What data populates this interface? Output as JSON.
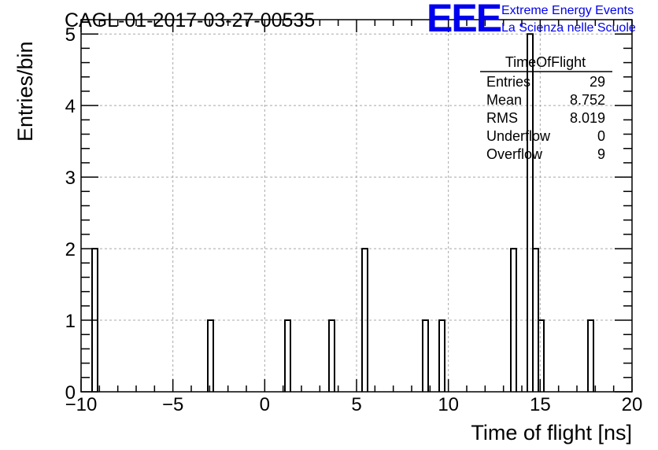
{
  "chart_data": {
    "type": "bar",
    "title": "CAGL-01-2017-03-27-00535",
    "xlabel": "Time of flight [ns]",
    "ylabel": "Entries/bin",
    "xlim": [
      -10,
      20
    ],
    "ylim": [
      0,
      5.2
    ],
    "grid": true,
    "bin_width": 0.3,
    "xticks": [
      -10,
      -5,
      0,
      5,
      10,
      15,
      20
    ],
    "xtick_labels": [
      "−10",
      "−5",
      "0",
      "5",
      "10",
      "15",
      "20"
    ],
    "yticks": [
      0,
      1,
      2,
      3,
      4,
      5
    ],
    "ytick_labels": [
      "0",
      "1",
      "2",
      "3",
      "4",
      "5"
    ],
    "bins": [
      {
        "x": -9.4,
        "value": 2
      },
      {
        "x": -3.1,
        "value": 1
      },
      {
        "x": 1.1,
        "value": 1
      },
      {
        "x": 3.5,
        "value": 1
      },
      {
        "x": 5.3,
        "value": 2
      },
      {
        "x": 8.6,
        "value": 1
      },
      {
        "x": 9.5,
        "value": 1
      },
      {
        "x": 13.4,
        "value": 2
      },
      {
        "x": 14.3,
        "value": 5
      },
      {
        "x": 14.6,
        "value": 2
      },
      {
        "x": 14.9,
        "value": 1
      },
      {
        "x": 17.6,
        "value": 1
      }
    ]
  },
  "stats_box": {
    "name": "TimeOfFlight",
    "rows": [
      {
        "label": "Entries",
        "value": "29"
      },
      {
        "label": "Mean",
        "value": "8.752"
      },
      {
        "label": "RMS",
        "value": "8.019"
      },
      {
        "label": "Underflow",
        "value": "0"
      },
      {
        "label": "Overflow",
        "value": "9"
      }
    ]
  },
  "logo": {
    "mark": "EEE",
    "line1": "Extreme Energy Events",
    "line2": "La Scienza nelle Scuole",
    "color": "#0000ee"
  }
}
